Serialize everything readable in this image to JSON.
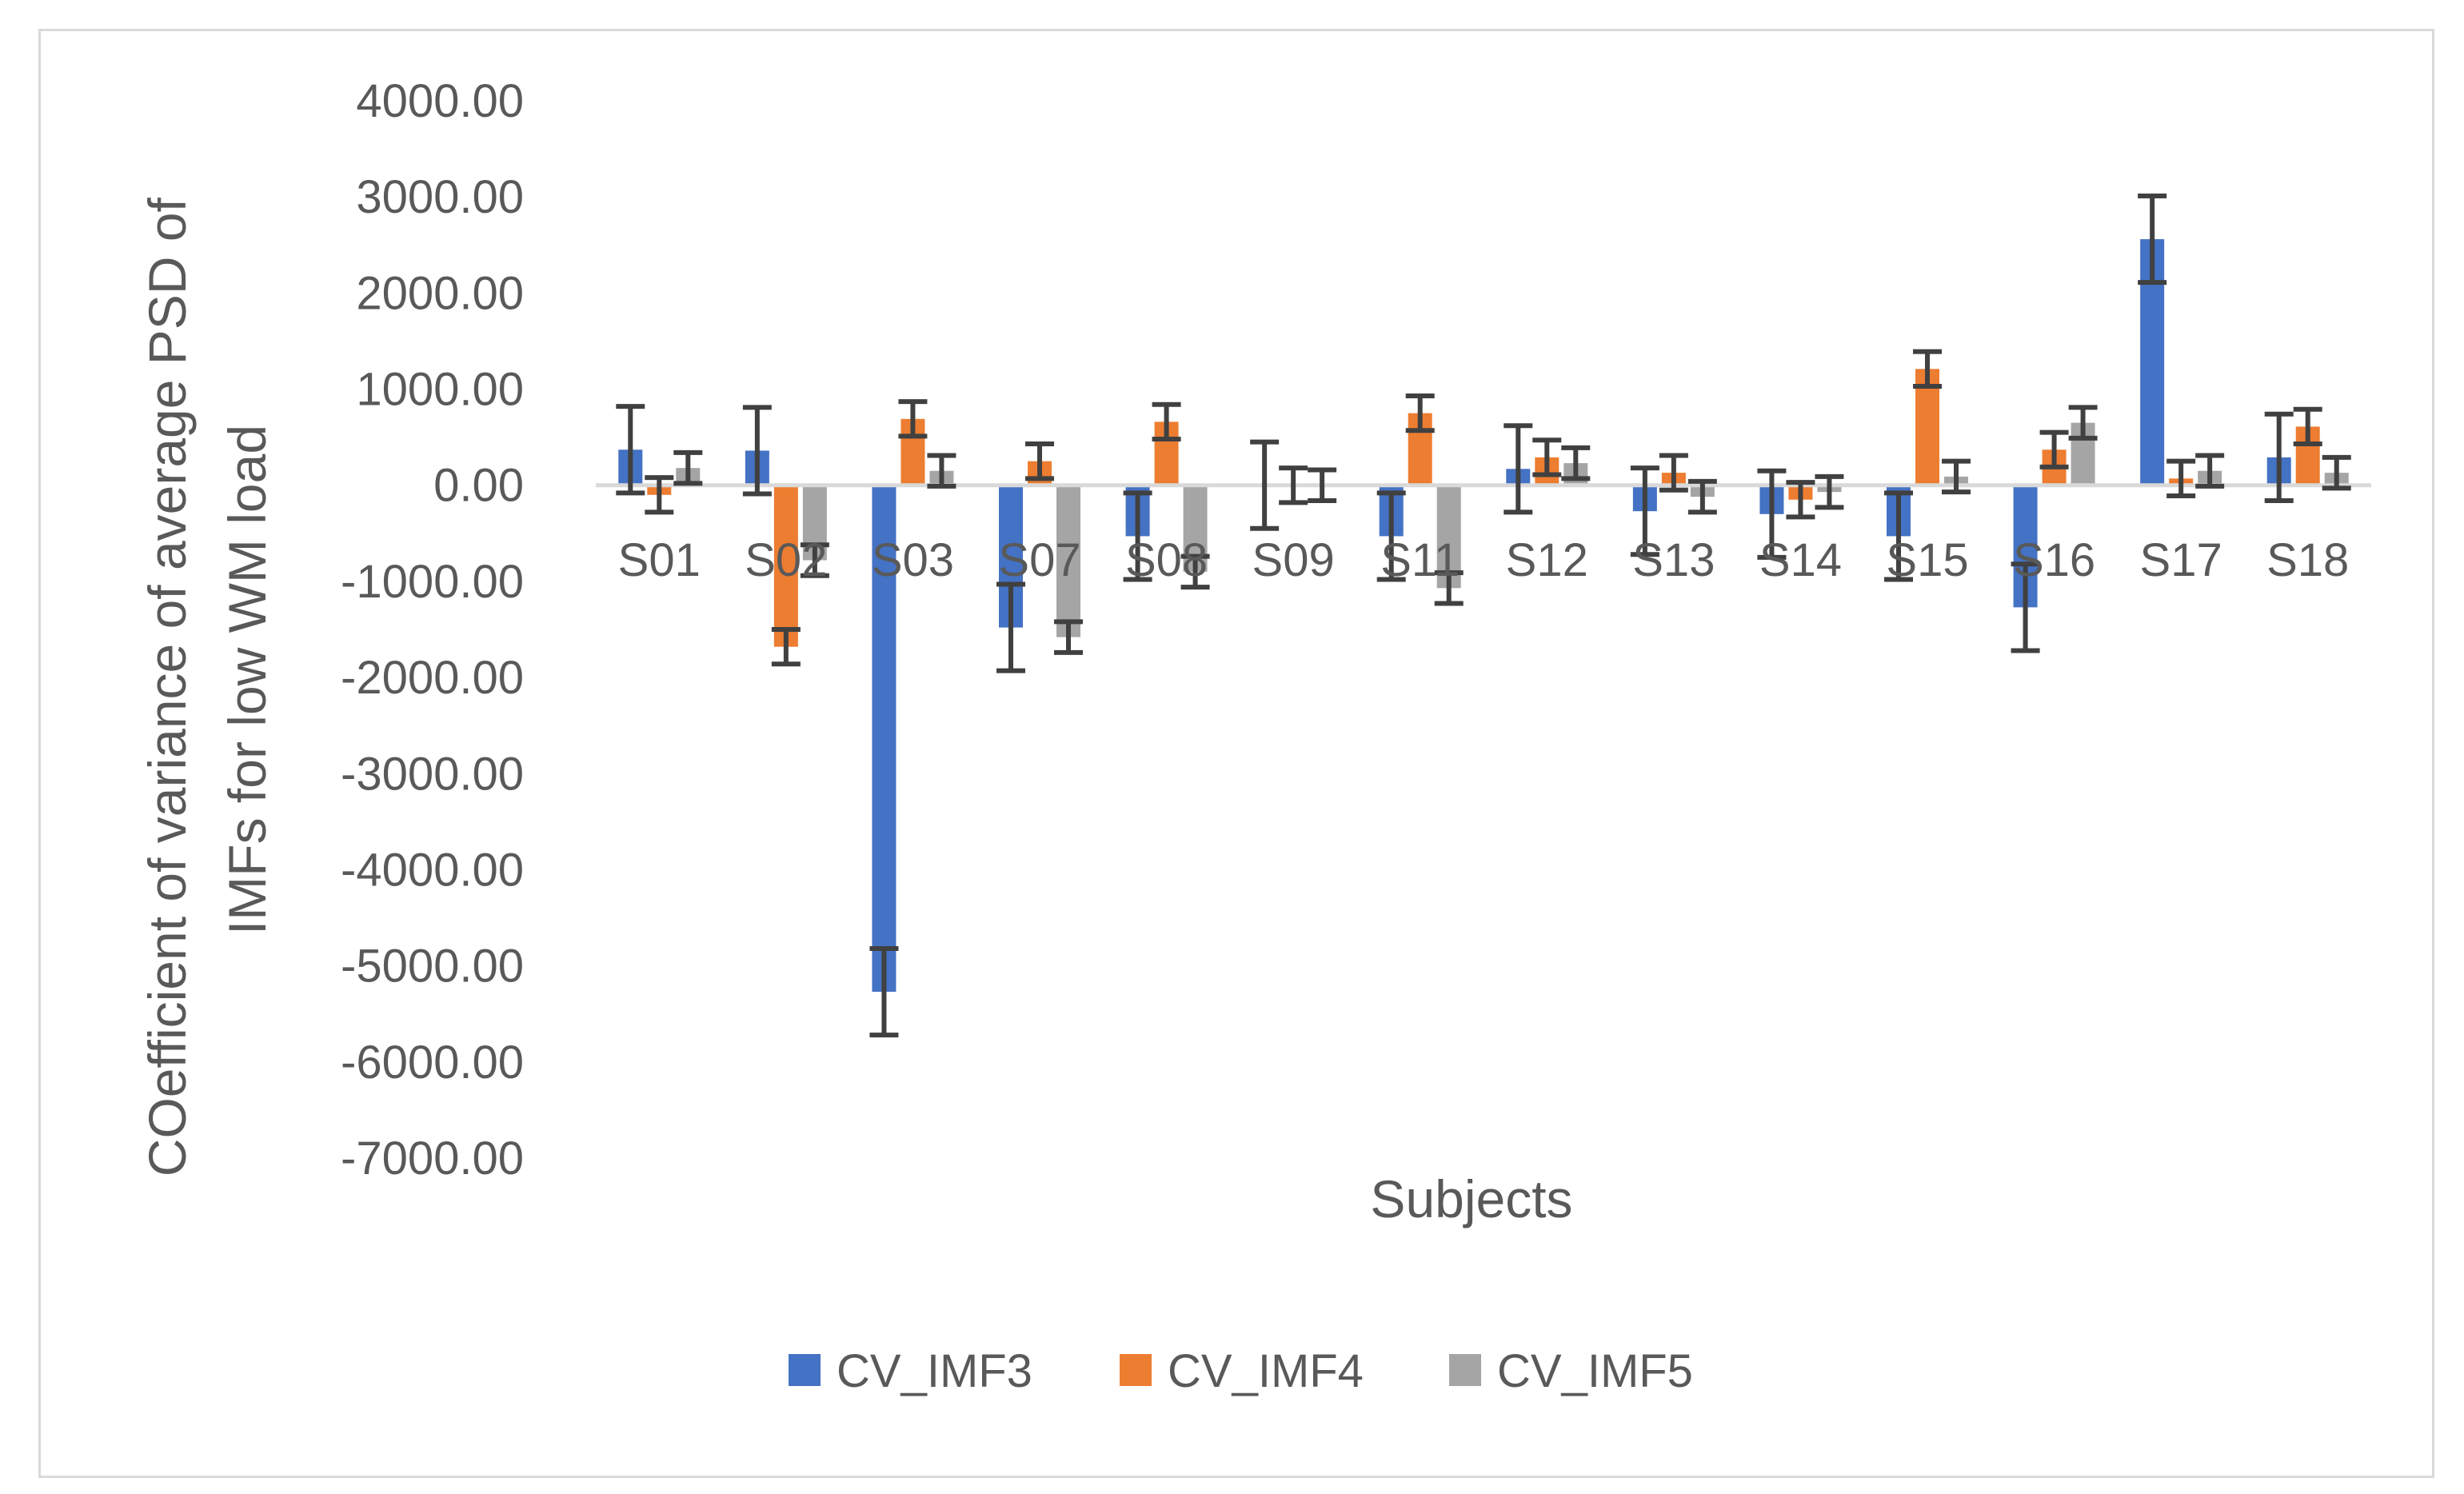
{
  "chart_data": {
    "type": "bar",
    "title": "",
    "xlabel": "Subjects",
    "ylabel_lines": [
      "COefficient of variance of average PSD of",
      "IMFs for low WM load"
    ],
    "ylim": [
      -7000,
      4000
    ],
    "yticks": [
      4000,
      3000,
      2000,
      1000,
      0,
      -1000,
      -2000,
      -3000,
      -4000,
      -5000,
      -6000,
      -7000
    ],
    "ytick_labels": [
      "4000.00",
      "3000.00",
      "2000.00",
      "1000.00",
      "0.00",
      "-1000.00",
      "-2000.00",
      "-3000.00",
      "-4000.00",
      "-5000.00",
      "-6000.00",
      "-7000.00"
    ],
    "categories": [
      "S01",
      "S02",
      "S03",
      "S07",
      "S08",
      "S09",
      "S11",
      "S12",
      "S13",
      "S14",
      "S15",
      "S16",
      "S17",
      "S18"
    ],
    "legend_position": "bottom",
    "grid": false,
    "series": [
      {
        "name": "CV_IMF3",
        "color": "#4472c4",
        "values": [
          370,
          360,
          -5270,
          -1480,
          -530,
          0,
          -530,
          170,
          -270,
          -300,
          -530,
          -1270,
          2560,
          290
        ],
        "errors": [
          450,
          450,
          450,
          450,
          450,
          450,
          450,
          450,
          450,
          450,
          450,
          450,
          450,
          450
        ]
      },
      {
        "name": "CV_IMF4",
        "color": "#ed7d31",
        "values": [
          -100,
          -1680,
          690,
          250,
          660,
          0,
          750,
          290,
          130,
          -150,
          1210,
          370,
          70,
          610
        ],
        "errors": [
          180,
          180,
          180,
          180,
          180,
          180,
          180,
          180,
          180,
          180,
          180,
          180,
          180,
          180
        ]
      },
      {
        "name": "CV_IMF5",
        "color": "#a5a5a5",
        "values": [
          180,
          -780,
          150,
          -1580,
          -900,
          0,
          -1070,
          230,
          -120,
          -70,
          90,
          650,
          150,
          130
        ],
        "errors": [
          160,
          160,
          160,
          160,
          160,
          160,
          160,
          160,
          160,
          160,
          160,
          160,
          160,
          160
        ]
      }
    ]
  }
}
